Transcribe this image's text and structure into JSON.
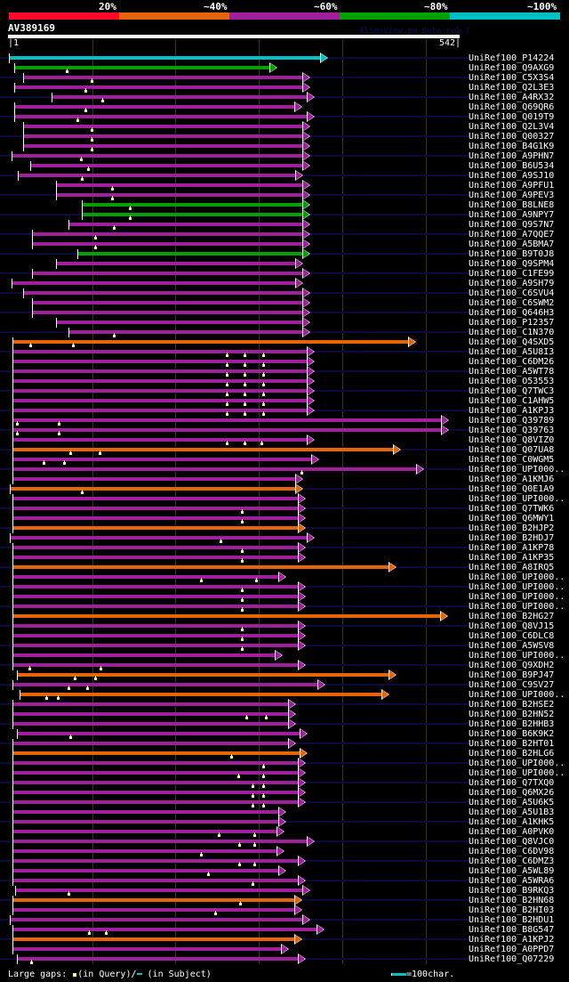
{
  "header": {
    "percent_labels": [
      "20%",
      "~40%",
      "~60%",
      "~80%",
      "~100%"
    ],
    "score_colors": [
      "#ff0a28",
      "#e8640a",
      "#a0209c",
      "#00a000",
      "#00c0c4"
    ],
    "query_name": "AV389169",
    "watermark": "AlignView.pm Beta rel.7",
    "query_start": "|1",
    "query_end": "542|",
    "query_length": 542
  },
  "colors": {
    "cyan": "#00c0c4",
    "green": "#00a000",
    "purple": "#a0209c",
    "orange": "#e8640a",
    "gap_query": "#ffff80",
    "track": "#0a0a3c"
  },
  "hits": [
    {
      "label": "UniRef100_P14224",
      "color": "cyan",
      "start": 1,
      "end": 374,
      "track": true,
      "gaps": []
    },
    {
      "label": "UniRef100_Q9AXG9",
      "color": "green",
      "start": 7,
      "end": 314,
      "track": false,
      "gaps": [
        70
      ]
    },
    {
      "label": "UniRef100_C5X3S4",
      "color": "purple",
      "start": 18,
      "end": 353,
      "track": true,
      "gaps": [
        100
      ]
    },
    {
      "label": "UniRef100_Q2L3E3",
      "color": "purple",
      "start": 7,
      "end": 353,
      "track": false,
      "gaps": [
        93
      ]
    },
    {
      "label": "UniRef100_A4RX32",
      "color": "purple",
      "start": 52,
      "end": 358,
      "track": true,
      "gaps": [
        113
      ]
    },
    {
      "label": "UniRef100_Q69QR6",
      "color": "purple",
      "start": 7,
      "end": 344,
      "track": false,
      "gaps": [
        93
      ]
    },
    {
      "label": "UniRef100_Q019T9",
      "color": "purple",
      "start": 7,
      "end": 358,
      "track": true,
      "gaps": [
        83
      ]
    },
    {
      "label": "UniRef100_Q2L3V4",
      "color": "purple",
      "start": 18,
      "end": 353,
      "track": false,
      "gaps": [
        100
      ]
    },
    {
      "label": "UniRef100_Q00327",
      "color": "purple",
      "start": 18,
      "end": 353,
      "track": true,
      "gaps": [
        100
      ]
    },
    {
      "label": "UniRef100_B4G1K9",
      "color": "purple",
      "start": 18,
      "end": 353,
      "track": false,
      "gaps": [
        100
      ]
    },
    {
      "label": "UniRef100_A9PHN7",
      "color": "purple",
      "start": 4,
      "end": 353,
      "track": true,
      "gaps": [
        87
      ]
    },
    {
      "label": "UniRef100_B6U534",
      "color": "purple",
      "start": 27,
      "end": 353,
      "track": false,
      "gaps": [
        96
      ]
    },
    {
      "label": "UniRef100_A9SJ10",
      "color": "purple",
      "start": 12,
      "end": 345,
      "track": true,
      "gaps": [
        88
      ]
    },
    {
      "label": "UniRef100_A9PFU1",
      "color": "purple",
      "start": 58,
      "end": 353,
      "track": false,
      "gaps": [
        125
      ]
    },
    {
      "label": "UniRef100_A9PEV3",
      "color": "purple",
      "start": 58,
      "end": 353,
      "track": true,
      "gaps": [
        125
      ]
    },
    {
      "label": "UniRef100_B8LNE8",
      "color": "green",
      "start": 89,
      "end": 353,
      "track": false,
      "gaps": [
        146
      ]
    },
    {
      "label": "UniRef100_A9NPY7",
      "color": "green",
      "start": 89,
      "end": 353,
      "track": true,
      "gaps": [
        146
      ]
    },
    {
      "label": "UniRef100_Q9S7N7",
      "color": "purple",
      "start": 72,
      "end": 353,
      "track": false,
      "gaps": [
        127
      ]
    },
    {
      "label": "UniRef100_A7QQE7",
      "color": "purple",
      "start": 29,
      "end": 353,
      "track": true,
      "gaps": [
        104
      ]
    },
    {
      "label": "UniRef100_A5BMA7",
      "color": "purple",
      "start": 29,
      "end": 353,
      "track": false,
      "gaps": [
        104
      ]
    },
    {
      "label": "UniRef100_B9T0J8",
      "color": "green",
      "start": 83,
      "end": 353,
      "track": true,
      "gaps": []
    },
    {
      "label": "UniRef100_Q9SPM4",
      "color": "purple",
      "start": 58,
      "end": 345,
      "track": false,
      "gaps": []
    },
    {
      "label": "UniRef100_C1FE99",
      "color": "purple",
      "start": 29,
      "end": 353,
      "track": true,
      "gaps": []
    },
    {
      "label": "UniRef100_A9SH79",
      "color": "purple",
      "start": 4,
      "end": 345,
      "track": false,
      "gaps": []
    },
    {
      "label": "UniRef100_C6SVU4",
      "color": "purple",
      "start": 18,
      "end": 353,
      "track": true,
      "gaps": []
    },
    {
      "label": "UniRef100_C6SWM2",
      "color": "purple",
      "start": 29,
      "end": 353,
      "track": false,
      "gaps": []
    },
    {
      "label": "UniRef100_Q646H3",
      "color": "purple",
      "start": 29,
      "end": 353,
      "track": true,
      "gaps": []
    },
    {
      "label": "UniRef100_P12357",
      "color": "purple",
      "start": 58,
      "end": 353,
      "track": false,
      "gaps": []
    },
    {
      "label": "UniRef100_C1N370",
      "color": "purple",
      "start": 72,
      "end": 353,
      "track": true,
      "gaps": [
        127
      ]
    },
    {
      "label": "UniRef100_Q4SXD5",
      "color": "orange",
      "start": 5,
      "end": 480,
      "track": false,
      "gaps": [
        27,
        78
      ]
    },
    {
      "label": "UniRef100_A5U8I3",
      "color": "purple",
      "start": 5,
      "end": 358,
      "track": true,
      "gaps": [
        262,
        284,
        306
      ]
    },
    {
      "label": "UniRef100_C6DM26",
      "color": "purple",
      "start": 5,
      "end": 358,
      "track": false,
      "gaps": [
        262,
        284,
        306
      ]
    },
    {
      "label": "UniRef100_A5WT78",
      "color": "purple",
      "start": 5,
      "end": 358,
      "track": true,
      "gaps": [
        262,
        284,
        306
      ]
    },
    {
      "label": "UniRef100_O53553",
      "color": "purple",
      "start": 5,
      "end": 358,
      "track": false,
      "gaps": [
        262,
        284,
        306
      ]
    },
    {
      "label": "UniRef100_Q7TWC3",
      "color": "purple",
      "start": 5,
      "end": 358,
      "track": true,
      "gaps": [
        262,
        284,
        306
      ]
    },
    {
      "label": "UniRef100_C1AHW5",
      "color": "purple",
      "start": 5,
      "end": 358,
      "track": false,
      "gaps": [
        262,
        284,
        306
      ]
    },
    {
      "label": "UniRef100_A1KPJ3",
      "color": "purple",
      "start": 5,
      "end": 358,
      "track": true,
      "gaps": [
        262,
        284,
        306
      ]
    },
    {
      "label": "UniRef100_Q39789",
      "color": "purple",
      "start": 5,
      "end": 520,
      "track": false,
      "gaps": [
        11,
        61
      ]
    },
    {
      "label": "UniRef100_Q39763",
      "color": "purple",
      "start": 5,
      "end": 520,
      "track": true,
      "gaps": [
        11,
        61
      ]
    },
    {
      "label": "UniRef100_Q8VIZ0",
      "color": "purple",
      "start": 5,
      "end": 358,
      "track": false,
      "gaps": [
        262,
        284,
        304
      ]
    },
    {
      "label": "UniRef100_Q07UA8",
      "color": "orange",
      "start": 5,
      "end": 462,
      "track": true,
      "gaps": [
        75,
        110
      ]
    },
    {
      "label": "UniRef100_C0WGM5",
      "color": "purple",
      "start": 5,
      "end": 364,
      "track": false,
      "gaps": [
        43,
        67
      ]
    },
    {
      "label": "UniRef100_UPI000..",
      "color": "purple",
      "start": 5,
      "end": 490,
      "track": true,
      "gaps": [
        352
      ]
    },
    {
      "label": "UniRef100_A1KMJ6",
      "color": "purple",
      "start": 5,
      "end": 345,
      "track": false,
      "gaps": []
    },
    {
      "label": "UniRef100_Q0E1A9",
      "color": "orange",
      "start": 2,
      "end": 345,
      "track": true,
      "gaps": [
        88
      ]
    },
    {
      "label": "UniRef100_UPI000..",
      "color": "purple",
      "start": 5,
      "end": 348,
      "track": false,
      "gaps": []
    },
    {
      "label": "UniRef100_Q7TWK6",
      "color": "purple",
      "start": 5,
      "end": 348,
      "track": true,
      "gaps": [
        281
      ]
    },
    {
      "label": "UniRef100_Q6MWY1",
      "color": "purple",
      "start": 5,
      "end": 348,
      "track": false,
      "gaps": [
        281
      ]
    },
    {
      "label": "UniRef100_B2HJP2",
      "color": "orange",
      "start": 5,
      "end": 348,
      "track": true,
      "gaps": []
    },
    {
      "label": "UniRef100_B2HDJ7",
      "color": "purple",
      "start": 2,
      "end": 358,
      "track": false,
      "gaps": [
        255
      ]
    },
    {
      "label": "UniRef100_A1KP78",
      "color": "purple",
      "start": 5,
      "end": 348,
      "track": true,
      "gaps": [
        281
      ]
    },
    {
      "label": "UniRef100_A1KP35",
      "color": "purple",
      "start": 5,
      "end": 348,
      "track": false,
      "gaps": [
        281
      ]
    },
    {
      "label": "UniRef100_A8IRQ5",
      "color": "orange",
      "start": 5,
      "end": 457,
      "track": true,
      "gaps": []
    },
    {
      "label": "UniRef100_UPI000..",
      "color": "purple",
      "start": 5,
      "end": 324,
      "track": false,
      "gaps": [
        231,
        298
      ]
    },
    {
      "label": "UniRef100_UPI000..",
      "color": "purple",
      "start": 5,
      "end": 348,
      "track": true,
      "gaps": [
        281
      ]
    },
    {
      "label": "UniRef100_UPI000..",
      "color": "purple",
      "start": 5,
      "end": 348,
      "track": false,
      "gaps": [
        281
      ]
    },
    {
      "label": "UniRef100_UPI000..",
      "color": "purple",
      "start": 5,
      "end": 348,
      "track": true,
      "gaps": [
        281
      ]
    },
    {
      "label": "UniRef100_B2HG27",
      "color": "orange",
      "start": 5,
      "end": 519,
      "track": false,
      "gaps": []
    },
    {
      "label": "UniRef100_Q8VJ15",
      "color": "purple",
      "start": 5,
      "end": 348,
      "track": true,
      "gaps": [
        281
      ]
    },
    {
      "label": "UniRef100_C6DLC8",
      "color": "purple",
      "start": 5,
      "end": 348,
      "track": false,
      "gaps": [
        281
      ]
    },
    {
      "label": "UniRef100_A5WSV8",
      "color": "purple",
      "start": 5,
      "end": 348,
      "track": true,
      "gaps": [
        281
      ]
    },
    {
      "label": "UniRef100_UPI000..",
      "color": "purple",
      "start": 5,
      "end": 320,
      "track": false,
      "gaps": []
    },
    {
      "label": "UniRef100_Q9XDH2",
      "color": "purple",
      "start": 5,
      "end": 348,
      "track": true,
      "gaps": [
        26,
        111
      ]
    },
    {
      "label": "UniRef100_B9PJ47",
      "color": "orange",
      "start": 11,
      "end": 457,
      "track": false,
      "gaps": [
        80,
        104
      ]
    },
    {
      "label": "UniRef100_C9SV27",
      "color": "purple",
      "start": 5,
      "end": 371,
      "track": true,
      "gaps": [
        73,
        95
      ]
    },
    {
      "label": "UniRef100_UPI000..",
      "color": "orange",
      "start": 14,
      "end": 448,
      "track": false,
      "gaps": [
        46,
        60
      ]
    },
    {
      "label": "UniRef100_B2HSE2",
      "color": "purple",
      "start": 5,
      "end": 336,
      "track": true,
      "gaps": []
    },
    {
      "label": "UniRef100_B2HN52",
      "color": "purple",
      "start": 5,
      "end": 336,
      "track": false,
      "gaps": [
        286,
        309
      ]
    },
    {
      "label": "UniRef100_B2HHB3",
      "color": "purple",
      "start": 5,
      "end": 336,
      "track": true,
      "gaps": []
    },
    {
      "label": "UniRef100_B6K9K2",
      "color": "purple",
      "start": 11,
      "end": 350,
      "track": false,
      "gaps": [
        75
      ]
    },
    {
      "label": "UniRef100_B2HT01",
      "color": "purple",
      "start": 5,
      "end": 336,
      "track": true,
      "gaps": []
    },
    {
      "label": "UniRef100_B2HLG6",
      "color": "orange",
      "start": 5,
      "end": 350,
      "track": false,
      "gaps": [
        268
      ]
    },
    {
      "label": "UniRef100_UPI000..",
      "color": "purple",
      "start": 5,
      "end": 348,
      "track": true,
      "gaps": [
        306
      ]
    },
    {
      "label": "UniRef100_UPI000..",
      "color": "purple",
      "start": 5,
      "end": 348,
      "track": false,
      "gaps": [
        276,
        306
      ]
    },
    {
      "label": "UniRef100_Q7TXQ0",
      "color": "purple",
      "start": 5,
      "end": 348,
      "track": true,
      "gaps": [
        293,
        306
      ]
    },
    {
      "label": "UniRef100_Q6MX26",
      "color": "purple",
      "start": 5,
      "end": 348,
      "track": false,
      "gaps": [
        293,
        306
      ]
    },
    {
      "label": "UniRef100_A5U6K5",
      "color": "purple",
      "start": 5,
      "end": 348,
      "track": true,
      "gaps": [
        293,
        306
      ]
    },
    {
      "label": "UniRef100_A5U1B3",
      "color": "purple",
      "start": 5,
      "end": 324,
      "track": false,
      "gaps": []
    },
    {
      "label": "UniRef100_A1KHK5",
      "color": "purple",
      "start": 5,
      "end": 324,
      "track": true,
      "gaps": []
    },
    {
      "label": "UniRef100_A0PVK0",
      "color": "purple",
      "start": 5,
      "end": 322,
      "track": false,
      "gaps": [
        253,
        296
      ]
    },
    {
      "label": "UniRef100_Q8VJC0",
      "color": "purple",
      "start": 5,
      "end": 358,
      "track": true,
      "gaps": [
        277,
        296
      ]
    },
    {
      "label": "UniRef100_C6DV98",
      "color": "purple",
      "start": 5,
      "end": 322,
      "track": false,
      "gaps": [
        231
      ]
    },
    {
      "label": "UniRef100_C6DMZ3",
      "color": "purple",
      "start": 5,
      "end": 348,
      "track": true,
      "gaps": [
        277,
        296
      ]
    },
    {
      "label": "UniRef100_A5WL89",
      "color": "purple",
      "start": 5,
      "end": 324,
      "track": false,
      "gaps": [
        240
      ]
    },
    {
      "label": "UniRef100_A5WRA6",
      "color": "purple",
      "start": 5,
      "end": 348,
      "track": true,
      "gaps": [
        293
      ]
    },
    {
      "label": "UniRef100_B9RKQ3",
      "color": "purple",
      "start": 8,
      "end": 353,
      "track": false,
      "gaps": [
        72
      ]
    },
    {
      "label": "UniRef100_B2HN68",
      "color": "orange",
      "start": 5,
      "end": 344,
      "track": true,
      "gaps": [
        278
      ]
    },
    {
      "label": "UniRef100_B2HI03",
      "color": "purple",
      "start": 5,
      "end": 344,
      "track": false,
      "gaps": [
        249
      ]
    },
    {
      "label": "UniRef100_B2HDU1",
      "color": "purple",
      "start": 2,
      "end": 353,
      "track": true,
      "gaps": []
    },
    {
      "label": "UniRef100_B8G547",
      "color": "purple",
      "start": 5,
      "end": 370,
      "track": false,
      "gaps": [
        97,
        117
      ]
    },
    {
      "label": "UniRef100_A1KPJ2",
      "color": "orange",
      "start": 5,
      "end": 343,
      "track": true,
      "gaps": []
    },
    {
      "label": "UniRef100_A0PPD7",
      "color": "purple",
      "start": 5,
      "end": 328,
      "track": false,
      "gaps": []
    },
    {
      "label": "UniRef100_Q07229",
      "color": "purple",
      "start": 11,
      "end": 348,
      "track": true,
      "gaps": [
        28
      ]
    }
  ],
  "footer": {
    "large_gaps_label": "Large gaps:",
    "in_query_label": "(in Query)/",
    "in_subject_label": "(in Subject)",
    "scale_label": "=100char."
  }
}
